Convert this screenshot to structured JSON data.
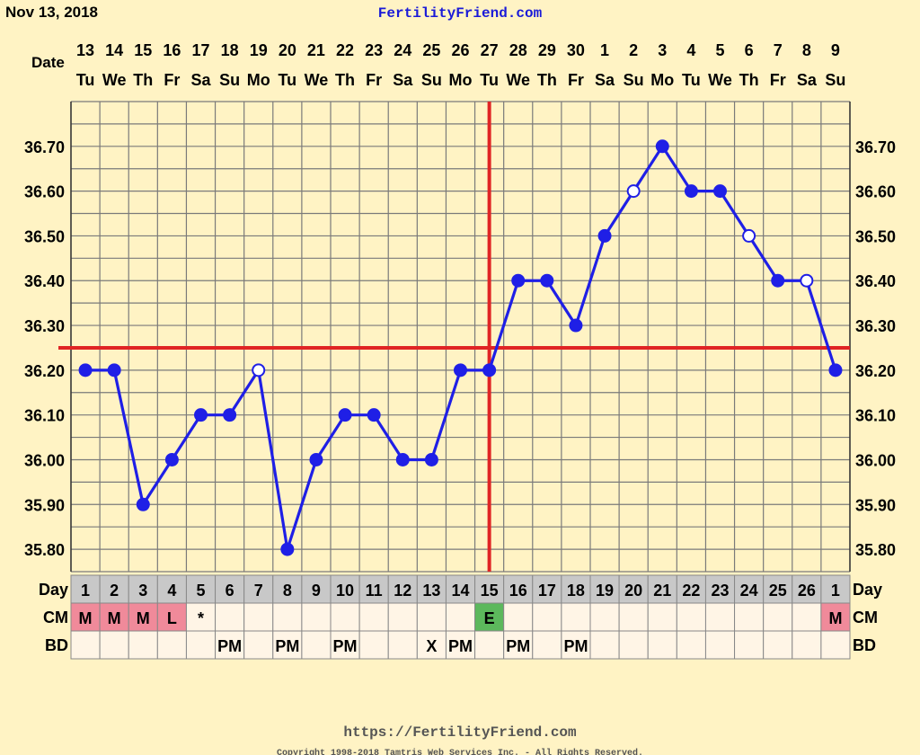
{
  "header": {
    "date": "Nov 13, 2018",
    "site_title": "FertilityFriend.com",
    "date_label": "Date"
  },
  "footer": {
    "url": "https://FertilityFriend.com",
    "copyright": "Copyright 1998-2018 Tamtris Web Services Inc. - All Rights Reserved."
  },
  "colors": {
    "line": "#1f1fe6",
    "coverline": "#e02424",
    "menses": "#f08a9a",
    "egg_white": "#5cb85c",
    "grid": "#7a7a7a",
    "day_row": "#c8c8c8",
    "cell_bg": "#fff5e6"
  },
  "chart_data": {
    "type": "line",
    "dates": [
      "13",
      "14",
      "15",
      "16",
      "17",
      "18",
      "19",
      "20",
      "21",
      "22",
      "23",
      "24",
      "25",
      "26",
      "27",
      "28",
      "29",
      "30",
      "1",
      "2",
      "3",
      "4",
      "5",
      "6",
      "7",
      "8",
      "9"
    ],
    "weekdays": [
      "Tu",
      "We",
      "Th",
      "Fr",
      "Sa",
      "Su",
      "Mo",
      "Tu",
      "We",
      "Th",
      "Fr",
      "Sa",
      "Su",
      "Mo",
      "Tu",
      "We",
      "Th",
      "Fr",
      "Sa",
      "Su",
      "Mo",
      "Tu",
      "We",
      "Th",
      "Fr",
      "Sa",
      "Su"
    ],
    "cycle_days": [
      "1",
      "2",
      "3",
      "4",
      "5",
      "6",
      "7",
      "8",
      "9",
      "10",
      "11",
      "12",
      "13",
      "14",
      "15",
      "16",
      "17",
      "18",
      "19",
      "20",
      "21",
      "22",
      "23",
      "24",
      "25",
      "26",
      "1"
    ],
    "temperatures": [
      36.2,
      36.2,
      35.9,
      36.0,
      36.1,
      36.1,
      36.2,
      35.8,
      36.0,
      36.1,
      36.1,
      36.0,
      36.0,
      36.2,
      36.2,
      36.4,
      36.4,
      36.3,
      36.5,
      36.6,
      36.7,
      36.6,
      36.6,
      36.5,
      36.4,
      36.4,
      36.2
    ],
    "open_points": [
      false,
      false,
      false,
      false,
      false,
      false,
      true,
      false,
      false,
      false,
      false,
      false,
      false,
      false,
      false,
      false,
      false,
      false,
      false,
      true,
      false,
      false,
      false,
      true,
      false,
      true,
      false
    ],
    "y_ticks": [
      "36.70",
      "36.60",
      "36.50",
      "36.40",
      "36.30",
      "36.20",
      "36.10",
      "36.00",
      "35.90",
      "35.80"
    ],
    "ylim": [
      35.75,
      36.8
    ],
    "coverline": 36.25,
    "ovulation_day_index": 14,
    "row_labels": {
      "day": "Day",
      "cm": "CM",
      "bd": "BD"
    },
    "cm": [
      "M",
      "M",
      "M",
      "L",
      "*",
      "",
      "",
      "",
      "",
      "",
      "",
      "",
      "",
      "",
      "E",
      "",
      "",
      "",
      "",
      "",
      "",
      "",
      "",
      "",
      "",
      "",
      "M"
    ],
    "bd": [
      "",
      "",
      "",
      "",
      "",
      "PM",
      "",
      "PM",
      "",
      "PM",
      "",
      "",
      "X",
      "PM",
      "",
      "PM",
      "",
      "PM",
      "",
      "",
      "",
      "",
      "",
      "",
      "",
      "",
      ""
    ]
  }
}
